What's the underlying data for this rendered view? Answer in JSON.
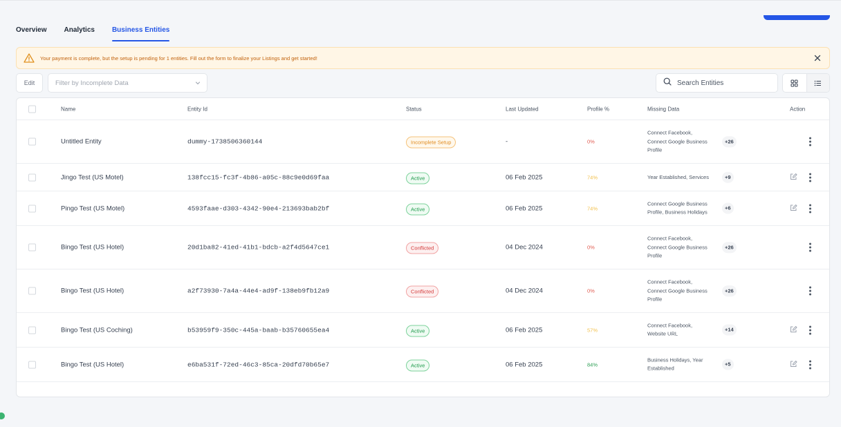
{
  "tabs": [
    {
      "label": "Overview",
      "active": false
    },
    {
      "label": "Analytics",
      "active": false
    },
    {
      "label": "Business Entities",
      "active": true
    }
  ],
  "banner": {
    "text": "Your payment is complete, but the setup is pending for 1 entities. Fill out the form to finalize your Listings and get started!",
    "icon": "warning-icon",
    "close_icon": "close-icon"
  },
  "toolbar": {
    "edit_label": "Edit",
    "filter_placeholder": "Filter by Incomplete Data",
    "search_placeholder": "Search Entities",
    "view_grid_icon": "grid-view-icon",
    "view_list_icon": "list-view-icon"
  },
  "table": {
    "headers": {
      "name": "Name",
      "entity_id": "Entity Id",
      "status": "Status",
      "last_updated": "Last Updated",
      "profile": "Profile %",
      "missing": "Missing Data",
      "action": "Action"
    },
    "rows": [
      {
        "name": "Untitled Entity",
        "entity_id": "dummy-1738506360144",
        "status": "Incomplete Setup",
        "status_type": "incomplete",
        "last_updated": "-",
        "profile": "0%",
        "profile_color": "#e05a4f",
        "missing": [
          "Connect Facebook,",
          "Connect Google Business",
          "Profile"
        ],
        "missing_more": "+26",
        "editable": false
      },
      {
        "name": "Jingo Test (US Motel)",
        "entity_id": "138fcc15-fc3f-4b86-a05c-88c9e0d69faa",
        "status": "Active",
        "status_type": "active",
        "last_updated": "06 Feb 2025",
        "profile": "74%",
        "profile_color": "#f2c14e",
        "missing": [
          "Year Established, Services"
        ],
        "missing_more": "+9",
        "editable": true
      },
      {
        "name": "Pingo Test (US Motel)",
        "entity_id": "4593faae-d303-4342-90e4-213693bab2bf",
        "status": "Active",
        "status_type": "active",
        "last_updated": "06 Feb 2025",
        "profile": "74%",
        "profile_color": "#f2c14e",
        "missing": [
          "Connect Google Business",
          "Profile, Business Holidays"
        ],
        "missing_more": "+6",
        "editable": true
      },
      {
        "name": "Bingo Test (US Hotel)",
        "entity_id": "20d1ba82-41ed-41b1-bdcb-a2f4d5647ce1",
        "status": "Conflicted",
        "status_type": "conflicted",
        "last_updated": "04 Dec 2024",
        "profile": "0%",
        "profile_color": "#e05a4f",
        "missing": [
          "Connect Facebook,",
          "Connect Google Business",
          "Profile"
        ],
        "missing_more": "+26",
        "editable": false
      },
      {
        "name": "Bingo Test (US Hotel)",
        "entity_id": "a2f73930-7a4a-44e4-ad9f-138eb9fb12a9",
        "status": "Conflicted",
        "status_type": "conflicted",
        "last_updated": "04 Dec 2024",
        "profile": "0%",
        "profile_color": "#e05a4f",
        "missing": [
          "Connect Facebook,",
          "Connect Google Business",
          "Profile"
        ],
        "missing_more": "+26",
        "editable": false
      },
      {
        "name": "Bingo Test (US Coching)",
        "entity_id": "b53959f9-350c-445a-baab-b35760655ea4",
        "status": "Active",
        "status_type": "active",
        "last_updated": "06 Feb 2025",
        "profile": "57%",
        "profile_color": "#f2c14e",
        "missing": [
          "Connect Facebook,",
          "Website URL"
        ],
        "missing_more": "+14",
        "editable": true
      },
      {
        "name": "Bingo Test (US Hotel)",
        "entity_id": "e6ba531f-72ed-46c3-85ca-20dfd70b65e7",
        "status": "Active",
        "status_type": "active",
        "last_updated": "06 Feb 2025",
        "profile": "84%",
        "profile_color": "#2e9e55",
        "missing": [
          "Business Holidays, Year",
          "Established"
        ],
        "missing_more": "+5",
        "editable": true
      }
    ]
  }
}
